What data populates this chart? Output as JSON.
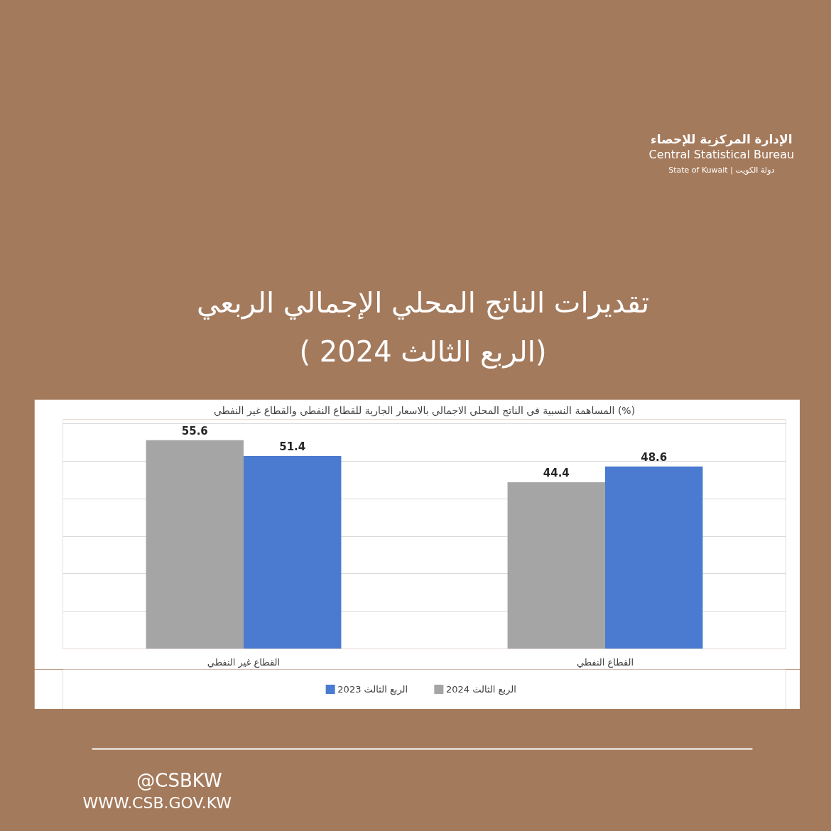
{
  "chart_data": {
    "type": "bar",
    "title": "تقديرات الناتج المحلي الإجمالي الربعي\n( الربع الثالث 2024)",
    "subtitle": "المساهمة النسبية في الناتج المحلي الاجمالي بالاسعار الجارية للقطاع النفطي والقطاع غير النفطي (%)",
    "categories": [
      "القطاع غير النفطي",
      "القطاع النفطي"
    ],
    "series": [
      {
        "name": "الربع الثالث 2024",
        "color": "#a5a5a5",
        "values": [
          55.6,
          44.4
        ]
      },
      {
        "name": "الربع الثالث 2023",
        "color": "#4a7bd0",
        "values": [
          51.4,
          48.6
        ]
      }
    ],
    "tick_labels": "x",
    "grid": "y",
    "legend": "bottom",
    "data_labels": true,
    "annotations": [
      "الإدارة المركزية للإحصاء",
      "Central Statistical Bureau",
      "State of Kuwait | دولة الكويت",
      "@CSBKW",
      "WWW.CSB.GOV.KW"
    ]
  }
}
